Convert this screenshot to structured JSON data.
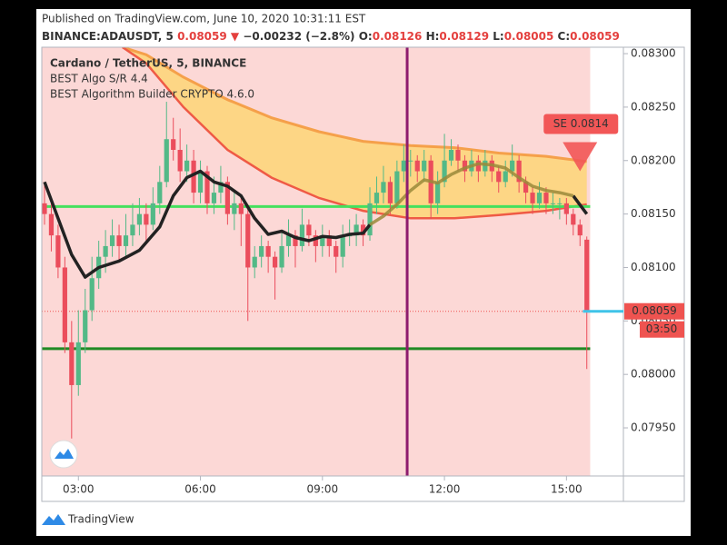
{
  "header": {
    "published": "Published on TradingView.com, June 10, 2020 10:31:11 EST",
    "symbol": "BINANCE:ADAUSDT, 5",
    "last": "0.08059",
    "arrow": "▼",
    "change": "−0.00232 (−2.8%)",
    "ohlc": [
      {
        "label": "O:",
        "value": "0.08126"
      },
      {
        "label": "H:",
        "value": "0.08129"
      },
      {
        "label": "L:",
        "value": "0.08005"
      },
      {
        "label": "C:",
        "value": "0.08059"
      }
    ]
  },
  "legend": [
    "Cardano / TetherUS, 5, BINANCE",
    "BEST Algo S/R 4.4",
    "BEST Algorithm Builder CRYPTO 4.6.0"
  ],
  "footer": "TradingView",
  "chart_data": {
    "type": "candlestick",
    "x": [
      "02:10",
      "02:20",
      "02:30",
      "02:40",
      "02:50",
      "03:00",
      "03:10",
      "03:20",
      "03:30",
      "03:40",
      "03:50",
      "04:00",
      "04:10",
      "04:20",
      "04:30",
      "04:40",
      "04:50",
      "05:00",
      "05:10",
      "05:20",
      "05:30",
      "05:40",
      "05:50",
      "06:00",
      "06:10",
      "06:20",
      "06:30",
      "06:40",
      "06:50",
      "07:00",
      "07:10",
      "07:20",
      "07:30",
      "07:40",
      "07:50",
      "08:00",
      "08:10",
      "08:20",
      "08:30",
      "08:40",
      "08:50",
      "09:00",
      "09:10",
      "09:20",
      "09:30",
      "09:40",
      "09:50",
      "10:00",
      "10:10",
      "10:20",
      "10:30",
      "10:40",
      "10:50",
      "11:00",
      "11:10",
      "11:20",
      "11:30",
      "11:40",
      "11:50",
      "12:00",
      "12:10",
      "12:20",
      "12:30",
      "12:40",
      "12:50",
      "13:00",
      "13:10",
      "13:20",
      "13:30",
      "13:40",
      "13:50",
      "14:00",
      "14:10",
      "14:20",
      "14:30",
      "14:40",
      "14:50",
      "15:00",
      "15:10",
      "15:20",
      "15:30"
    ],
    "open": [
      0.0816,
      0.0815,
      0.0813,
      0.081,
      0.0803,
      0.0799,
      0.0803,
      0.0806,
      0.0809,
      0.0811,
      0.0812,
      0.0813,
      0.0812,
      0.0813,
      0.0814,
      0.0815,
      0.0814,
      0.0816,
      0.0818,
      0.0822,
      0.0821,
      0.0819,
      0.082,
      0.0817,
      0.0819,
      0.0816,
      0.0817,
      0.0818,
      0.0815,
      0.0816,
      0.0815,
      0.081,
      0.0811,
      0.0812,
      0.0811,
      0.081,
      0.0812,
      0.0813,
      0.0812,
      0.0814,
      0.0813,
      0.0812,
      0.0813,
      0.0812,
      0.0811,
      0.0813,
      0.0813,
      0.0814,
      0.0813,
      0.0816,
      0.0817,
      0.0818,
      0.0816,
      0.0819,
      0.082,
      0.082,
      0.0819,
      0.082,
      0.0816,
      0.0818,
      0.082,
      0.0821,
      0.082,
      0.0819,
      0.082,
      0.0819,
      0.082,
      0.0819,
      0.0818,
      0.0819,
      0.082,
      0.0818,
      0.0817,
      0.0816,
      0.0817,
      0.0816,
      0.0816,
      0.0816,
      0.0815,
      0.0814,
      0.08126
    ],
    "high": [
      0.08178,
      0.0816,
      0.0814,
      0.0811,
      0.0805,
      0.0806,
      0.0808,
      0.0811,
      0.08125,
      0.08135,
      0.08145,
      0.0814,
      0.0815,
      0.0816,
      0.08165,
      0.0816,
      0.08175,
      0.08195,
      0.08255,
      0.0824,
      0.0823,
      0.08215,
      0.0821,
      0.082,
      0.08195,
      0.08185,
      0.08195,
      0.08185,
      0.0817,
      0.08165,
      0.08155,
      0.0812,
      0.0813,
      0.08125,
      0.08115,
      0.08135,
      0.08145,
      0.08135,
      0.08155,
      0.08145,
      0.08135,
      0.0814,
      0.08135,
      0.08125,
      0.0814,
      0.08145,
      0.0815,
      0.08145,
      0.08175,
      0.08185,
      0.08195,
      0.08185,
      0.082,
      0.08215,
      0.0821,
      0.08205,
      0.0821,
      0.08205,
      0.0819,
      0.08225,
      0.0822,
      0.08215,
      0.08205,
      0.0821,
      0.08205,
      0.0821,
      0.08205,
      0.08195,
      0.082,
      0.08215,
      0.08205,
      0.08185,
      0.08175,
      0.0818,
      0.08175,
      0.0817,
      0.08165,
      0.08165,
      0.08155,
      0.08145,
      0.08129
    ],
    "low": [
      0.0814,
      0.08115,
      0.0809,
      0.0802,
      0.0794,
      0.0798,
      0.0802,
      0.0805,
      0.0808,
      0.08095,
      0.0811,
      0.08105,
      0.0811,
      0.0812,
      0.0813,
      0.08125,
      0.08135,
      0.0815,
      0.08175,
      0.082,
      0.0818,
      0.0818,
      0.0816,
      0.0816,
      0.0815,
      0.0815,
      0.0816,
      0.0814,
      0.08135,
      0.0812,
      0.0805,
      0.0809,
      0.081,
      0.08095,
      0.0807,
      0.08095,
      0.0811,
      0.081,
      0.08115,
      0.0812,
      0.08105,
      0.0811,
      0.0811,
      0.08095,
      0.081,
      0.0812,
      0.0812,
      0.0812,
      0.08125,
      0.0815,
      0.0816,
      0.0815,
      0.08155,
      0.0818,
      0.08185,
      0.0818,
      0.0818,
      0.08145,
      0.0815,
      0.08175,
      0.08195,
      0.0819,
      0.0818,
      0.08185,
      0.0818,
      0.08185,
      0.0818,
      0.0817,
      0.08175,
      0.08185,
      0.0817,
      0.0816,
      0.0815,
      0.08155,
      0.0815,
      0.0815,
      0.08145,
      0.0814,
      0.0813,
      0.0812,
      0.08005
    ],
    "close": [
      0.0815,
      0.0813,
      0.081,
      0.0803,
      0.0799,
      0.0803,
      0.0806,
      0.0809,
      0.0811,
      0.0812,
      0.0813,
      0.0812,
      0.0813,
      0.0814,
      0.0815,
      0.0814,
      0.0816,
      0.0818,
      0.0822,
      0.0821,
      0.0819,
      0.082,
      0.0817,
      0.0819,
      0.0816,
      0.0817,
      0.0818,
      0.0815,
      0.0816,
      0.0815,
      0.081,
      0.0811,
      0.0812,
      0.0811,
      0.081,
      0.0812,
      0.0813,
      0.0812,
      0.0814,
      0.0813,
      0.0812,
      0.0813,
      0.0812,
      0.0811,
      0.0813,
      0.0813,
      0.0814,
      0.0813,
      0.0816,
      0.0817,
      0.0818,
      0.0816,
      0.0819,
      0.082,
      0.082,
      0.0819,
      0.082,
      0.0816,
      0.0818,
      0.082,
      0.0821,
      0.082,
      0.0819,
      0.082,
      0.0819,
      0.082,
      0.0819,
      0.0818,
      0.0819,
      0.082,
      0.0818,
      0.0817,
      0.0816,
      0.0817,
      0.0816,
      0.0816,
      0.0816,
      0.0815,
      0.0814,
      0.0813,
      0.08059
    ],
    "up_color": "#53b987",
    "down_color": "#eb4d5c",
    "background": "#fcd8d6",
    "band": {
      "x": [
        "04:05",
        "04:40",
        "05:35",
        "06:40",
        "07:45",
        "08:55",
        "10:00",
        "11:10",
        "12:15",
        "13:20",
        "14:30",
        "15:30"
      ],
      "upper": [
        0.08306,
        0.08299,
        0.08278,
        0.08257,
        0.0824,
        0.08227,
        0.08218,
        0.08214,
        0.08212,
        0.08207,
        0.08204,
        0.08199
      ],
      "lower": [
        0.08306,
        0.08291,
        0.0825,
        0.0821,
        0.08184,
        0.08165,
        0.08153,
        0.08146,
        0.08146,
        0.08149,
        0.08153,
        0.08159
      ],
      "fill": "#fdd67c",
      "upper_color": "#f5a04a",
      "lower_color": "#ef5a45"
    },
    "lines": [
      {
        "color": "#222222",
        "x": [
          "02:10",
          "02:30",
          "02:50",
          "03:10",
          "03:30",
          "04:00",
          "04:30",
          "05:00",
          "05:20",
          "05:40",
          "06:00",
          "06:20",
          "06:40",
          "07:00",
          "07:20",
          "07:40",
          "08:00",
          "08:20",
          "08:40",
          "09:00",
          "09:20",
          "09:40",
          "10:00",
          "10:10",
          "10:30",
          "10:50",
          "11:10",
          "11:30",
          "11:50",
          "12:10",
          "12:30",
          "12:50",
          "13:10",
          "13:30",
          "13:50",
          "14:10",
          "14:30",
          "14:50",
          "15:10",
          "15:30"
        ],
        "values": [
          0.0818,
          0.08146,
          0.08112,
          0.08091,
          0.081,
          0.08106,
          0.08116,
          0.08138,
          0.08167,
          0.08184,
          0.0819,
          0.0818,
          0.08176,
          0.08167,
          0.08146,
          0.08131,
          0.08134,
          0.08128,
          0.08125,
          0.08129,
          0.08128,
          0.08131,
          0.08132,
          0.0814,
          null,
          null,
          null,
          null,
          null,
          null,
          null,
          null,
          null,
          null,
          null,
          null,
          null,
          null,
          0.08167,
          0.0815
        ]
      },
      {
        "color": "#9a8a3a",
        "x": [
          "02:10",
          "02:30",
          "02:50",
          "03:10",
          "03:30",
          "04:00",
          "04:30",
          "05:00",
          "05:20",
          "05:40",
          "06:00",
          "06:20",
          "06:40",
          "07:00",
          "07:20",
          "07:40",
          "08:00",
          "08:20",
          "08:40",
          "09:00",
          "09:20",
          "09:40",
          "10:00",
          "10:10",
          "10:30",
          "10:50",
          "11:10",
          "11:30",
          "11:50",
          "12:10",
          "12:30",
          "12:50",
          "13:10",
          "13:30",
          "13:50",
          "14:10",
          "14:30",
          "14:50",
          "15:10",
          "15:30"
        ],
        "values": [
          null,
          null,
          null,
          null,
          null,
          null,
          null,
          null,
          null,
          null,
          null,
          null,
          null,
          null,
          null,
          null,
          null,
          null,
          null,
          null,
          null,
          null,
          null,
          0.0814,
          0.08148,
          0.08159,
          0.08172,
          0.08182,
          0.08179,
          0.08187,
          0.08193,
          0.08197,
          0.08196,
          0.08193,
          0.08184,
          0.08176,
          0.08172,
          0.0817,
          0.08167,
          null
        ]
      }
    ],
    "hlines": [
      {
        "value": 0.08157,
        "color": "#45e05e"
      },
      {
        "value": 0.08024,
        "color": "#1f8a24"
      }
    ],
    "vlines": [
      {
        "x": "11:05",
        "color": "#8e1c6e"
      }
    ],
    "signal": {
      "text": "SE 0.0814",
      "x": "15:20",
      "value": 0.0819,
      "color": "#f25757"
    },
    "last_price": {
      "value": 0.08059,
      "countdown": "03:50",
      "color": "#ef5350",
      "line_color": "#3fc3e8"
    },
    "xlim": [
      "02:06",
      "16:24"
    ],
    "xticks": [
      "03:00",
      "06:00",
      "09:00",
      "12:00",
      "15:00"
    ],
    "ylim": [
      0.07905,
      0.08306
    ],
    "yticks": [
      {
        "value": 0.0795,
        "label": "0.07950"
      },
      {
        "value": 0.08,
        "label": "0.08000"
      },
      {
        "value": 0.0805,
        "label": "0.08050"
      },
      {
        "value": 0.081,
        "label": "0.08100"
      },
      {
        "value": 0.0815,
        "label": "0.08150"
      },
      {
        "value": 0.082,
        "label": "0.08200"
      },
      {
        "value": 0.0825,
        "label": "0.08250"
      },
      {
        "value": 0.083,
        "label": "0.08300"
      }
    ]
  }
}
